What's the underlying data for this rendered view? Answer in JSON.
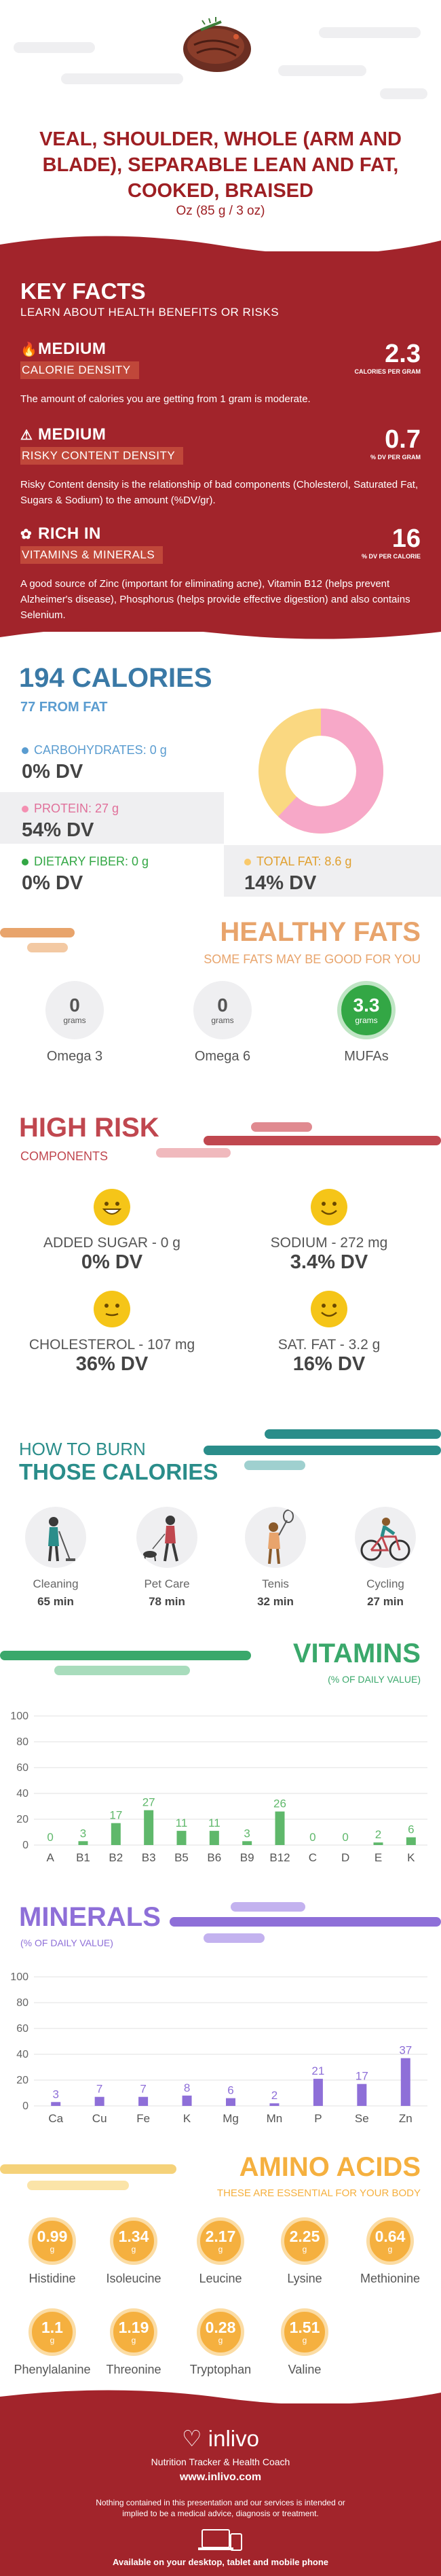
{
  "header": {
    "title": "VEAL, SHOULDER, WHOLE (ARM AND BLADE), SEPARABLE LEAN AND FAT, COOKED, BRAISED",
    "serving": "Oz (85 g / 3 oz)",
    "food_image_icon": "steak-image"
  },
  "key_facts": {
    "title": "KEY FACTS",
    "subtitle": "LEARN ABOUT HEALTH BENEFITS OR RISKS",
    "items": [
      {
        "level": "MEDIUM",
        "tag": "CALORIE DENSITY",
        "value": "2.3",
        "unit": "CALORIES PER GRAM",
        "desc": "The amount of calories you are getting from 1 gram is moderate.",
        "icon": "flame-icon"
      },
      {
        "level": "MEDIUM",
        "tag": "RISKY CONTENT DENSITY",
        "value": "0.7",
        "unit": "% DV PER GRAM",
        "desc": "Risky Content density is the relationship of bad components (Cholesterol, Saturated Fat, Sugars & Sodium) to the amount (%DV/gr).",
        "icon": "warning-icon"
      },
      {
        "level": "RICH  IN",
        "tag": "VITAMINS & MINERALS",
        "value": "16",
        "unit": "% DV PER CALORIE",
        "desc": "A good source of Zinc (important for eliminating acne), Vitamin B12 (helps prevent Alzheimer's disease), Phosphorus (helps provide effective digestion) and also contains Selenium.",
        "icon": "leaf-icon"
      }
    ]
  },
  "calories": {
    "title": "194 CALORIES",
    "subtitle": "77 FROM FAT",
    "macros": [
      {
        "label": "CARBOHYDRATES: 0 g",
        "dv": "0% DV",
        "color": "#5a9cd0"
      },
      {
        "label": "PROTEIN: 27 g",
        "dv": "54% DV",
        "color": "#f48fb1"
      },
      {
        "label": "DIETARY FIBER: 0 g",
        "dv": "0% DV",
        "color": "#33a745"
      },
      {
        "label": "TOTAL FAT: 8.6 g",
        "dv": "14% DV",
        "color": "#f9c96b"
      }
    ],
    "donut": {
      "protein_pct": 62,
      "fat_pct": 38,
      "protein_color": "#f7a8c8",
      "fat_color": "#fad881"
    }
  },
  "healthy_fats": {
    "title": "HEALTHY FATS",
    "subtitle": "SOME FATS MAY BE GOOD FOR YOU",
    "items": [
      {
        "value": "0",
        "unit": "grams",
        "label": "Omega 3"
      },
      {
        "value": "0",
        "unit": "grams",
        "label": "Omega 6"
      },
      {
        "value": "3.3",
        "unit": "grams",
        "label": "MUFAs"
      }
    ]
  },
  "high_risk": {
    "title": "HIGH RISK",
    "subtitle": "COMPONENTS",
    "items": [
      {
        "label": "ADDED SUGAR - 0 g",
        "dv": "0% DV",
        "icon": "happy-face-icon"
      },
      {
        "label": "SODIUM - 272 mg",
        "dv": "3.4% DV",
        "icon": "smile-face-icon"
      },
      {
        "label": "CHOLESTEROL - 107 mg",
        "dv": "36% DV",
        "icon": "neutral-face-icon"
      },
      {
        "label": "SAT. FAT - 3.2 g",
        "dv": "16% DV",
        "icon": "smile-face-icon"
      }
    ]
  },
  "burn": {
    "title_line1": "HOW TO BURN",
    "title_line2": "THOSE CALORIES",
    "items": [
      {
        "label": "Cleaning",
        "minutes": "65 min",
        "icon": "cleaning-icon"
      },
      {
        "label": "Pet Care",
        "minutes": "78 min",
        "icon": "pet-care-icon"
      },
      {
        "label": "Tenis",
        "minutes": "32 min",
        "icon": "tennis-icon"
      },
      {
        "label": "Cycling",
        "minutes": "27 min",
        "icon": "cycling-icon"
      }
    ]
  },
  "vitamins": {
    "title": "VITAMINS",
    "subtitle": "(% OF DAILY VALUE)"
  },
  "minerals": {
    "title": "MINERALS",
    "subtitle": "(% OF DAILY VALUE)"
  },
  "chart_data": [
    {
      "type": "bar",
      "categories": [
        "A",
        "B1",
        "B2",
        "B3",
        "B5",
        "B6",
        "B9",
        "B12",
        "C",
        "D",
        "E",
        "K"
      ],
      "values": [
        0,
        3,
        17,
        27,
        11,
        11,
        3,
        26,
        0,
        0,
        2,
        6
      ],
      "ylim": [
        0,
        100
      ],
      "yticks": [
        0,
        20,
        40,
        60,
        80,
        100
      ],
      "grid": true,
      "color": "#5fb86b"
    },
    {
      "type": "bar",
      "categories": [
        "Ca",
        "Cu",
        "Fe",
        "K",
        "Mg",
        "Mn",
        "P",
        "Se",
        "Zn"
      ],
      "values": [
        3,
        7,
        7,
        8,
        6,
        2,
        21,
        17,
        37
      ],
      "ylim": [
        0,
        100
      ],
      "yticks": [
        0,
        20,
        40,
        60,
        80,
        100
      ],
      "grid": true,
      "color": "#8e6fd8"
    }
  ],
  "amino": {
    "title": "AMINO ACIDS",
    "subtitle": "THESE ARE ESSENTIAL FOR YOUR BODY",
    "items": [
      {
        "value": "0.99",
        "unit": "g",
        "label": "Histidine"
      },
      {
        "value": "1.34",
        "unit": "g",
        "label": "Isoleucine"
      },
      {
        "value": "2.17",
        "unit": "g",
        "label": "Leucine"
      },
      {
        "value": "2.25",
        "unit": "g",
        "label": "Lysine"
      },
      {
        "value": "0.64",
        "unit": "g",
        "label": "Methionine"
      },
      {
        "value": "1.1",
        "unit": "g",
        "label": "Phenylalanine"
      },
      {
        "value": "1.19",
        "unit": "g",
        "label": "Threonine"
      },
      {
        "value": "0.28",
        "unit": "g",
        "label": "Tryptophan"
      },
      {
        "value": "1.51",
        "unit": "g",
        "label": "Valine"
      }
    ]
  },
  "footer": {
    "brand": "inlivo",
    "tagline": "Nutrition Tracker & Health Coach",
    "url": "www.inlivo.com",
    "disclaimer": "Nothing contained in this presentation and our services is intended or implied to be a medical advice, diagnosis or treatment.",
    "available": "Available on your desktop, tablet and mobile phone",
    "devices_icon": "devices-icon",
    "heart_icon": "heart-icon"
  },
  "colors": {
    "brand_red": "#a2242b",
    "blue": "#3a79a6",
    "orange": "#e8a46c",
    "rose": "#c0474f",
    "teal": "#2a8d8a",
    "green": "#3aa86b",
    "purple": "#8e6fd8",
    "amber": "#f5b03f"
  }
}
